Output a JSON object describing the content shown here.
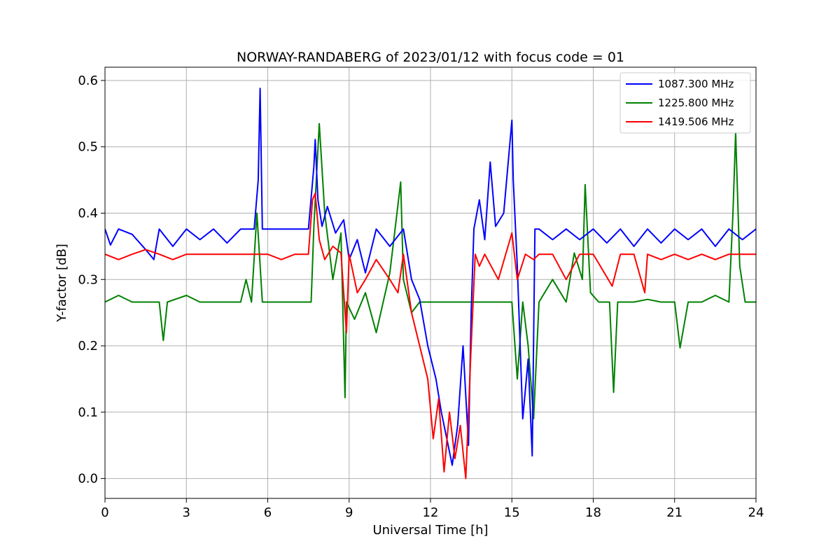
{
  "chart_data": {
    "type": "line",
    "title": "NORWAY-RANDABERG of 2023/01/12 with focus code = 01",
    "xlabel": "Universal Time [h]",
    "ylabel": "Y-factor [dB]",
    "xlim": [
      0,
      24
    ],
    "ylim": [
      -0.03,
      0.62
    ],
    "xticks": [
      0,
      3,
      6,
      9,
      12,
      15,
      18,
      21,
      24
    ],
    "yticks": [
      0.0,
      0.1,
      0.2,
      0.3,
      0.4,
      0.5,
      0.6
    ],
    "ytick_labels": [
      "0.0",
      "0.1",
      "0.2",
      "0.3",
      "0.4",
      "0.5",
      "0.6"
    ],
    "grid": true,
    "legend_position": "top-right",
    "series": [
      {
        "name": "1087.300 MHz",
        "color": "#0000ff",
        "x": [
          0,
          0.2,
          0.5,
          1.0,
          1.5,
          1.8,
          2.0,
          2.5,
          3.0,
          3.5,
          4.0,
          4.5,
          5.0,
          5.5,
          5.65,
          5.72,
          5.8,
          6.5,
          7.5,
          7.7,
          7.75,
          7.85,
          8.0,
          8.2,
          8.5,
          8.8,
          9.0,
          9.3,
          9.6,
          10.0,
          10.5,
          11.0,
          11.3,
          11.6,
          11.9,
          12.2,
          12.4,
          12.6,
          12.8,
          13.0,
          13.2,
          13.4,
          13.5,
          13.6,
          13.8,
          14.0,
          14.2,
          14.4,
          14.7,
          15.0,
          15.05,
          15.2,
          15.4,
          15.6,
          15.75,
          15.85,
          16.0,
          16.5,
          17.0,
          17.5,
          18.0,
          18.5,
          19.0,
          19.5,
          20.0,
          20.5,
          21.0,
          21.5,
          22.0,
          22.5,
          23.0,
          23.5,
          24.0
        ],
        "values": [
          0.376,
          0.352,
          0.376,
          0.368,
          0.345,
          0.33,
          0.376,
          0.35,
          0.376,
          0.36,
          0.376,
          0.355,
          0.376,
          0.376,
          0.45,
          0.588,
          0.376,
          0.376,
          0.376,
          0.47,
          0.511,
          0.42,
          0.38,
          0.41,
          0.37,
          0.39,
          0.33,
          0.36,
          0.31,
          0.376,
          0.35,
          0.376,
          0.3,
          0.27,
          0.2,
          0.15,
          0.1,
          0.06,
          0.02,
          0.08,
          0.2,
          0.05,
          0.25,
          0.376,
          0.42,
          0.36,
          0.477,
          0.38,
          0.4,
          0.54,
          0.45,
          0.32,
          0.09,
          0.18,
          0.034,
          0.376,
          0.376,
          0.36,
          0.376,
          0.36,
          0.376,
          0.355,
          0.376,
          0.35,
          0.376,
          0.355,
          0.376,
          0.36,
          0.376,
          0.35,
          0.376,
          0.36,
          0.376
        ]
      },
      {
        "name": "1225.800 MHz",
        "color": "#008000",
        "x": [
          0,
          0.5,
          1.0,
          1.5,
          2.0,
          2.15,
          2.3,
          3.0,
          3.5,
          4.0,
          5.0,
          5.2,
          5.4,
          5.6,
          5.8,
          6.5,
          7.0,
          7.6,
          7.7,
          7.9,
          8.1,
          8.4,
          8.7,
          8.85,
          8.9,
          9.2,
          9.6,
          10.0,
          10.5,
          10.9,
          11.0,
          11.3,
          11.6,
          12.0,
          12.4,
          12.8,
          13.2,
          13.5,
          13.8,
          14.2,
          14.6,
          15.0,
          15.2,
          15.4,
          15.6,
          15.8,
          16.0,
          16.5,
          17.0,
          17.3,
          17.6,
          17.7,
          17.9,
          18.2,
          18.6,
          18.75,
          18.9,
          19.5,
          20.0,
          20.5,
          21.0,
          21.2,
          21.5,
          22.0,
          22.5,
          23.0,
          23.15,
          23.25,
          23.4,
          23.6,
          24.0
        ],
        "values": [
          0.266,
          0.276,
          0.266,
          0.266,
          0.266,
          0.208,
          0.266,
          0.276,
          0.266,
          0.266,
          0.266,
          0.3,
          0.266,
          0.4,
          0.266,
          0.266,
          0.266,
          0.266,
          0.38,
          0.535,
          0.4,
          0.3,
          0.37,
          0.122,
          0.266,
          0.24,
          0.28,
          0.22,
          0.31,
          0.447,
          0.3,
          0.25,
          0.266,
          0.266,
          0.266,
          0.266,
          0.266,
          0.266,
          0.266,
          0.266,
          0.266,
          0.266,
          0.15,
          0.266,
          0.2,
          0.09,
          0.266,
          0.3,
          0.266,
          0.34,
          0.3,
          0.443,
          0.28,
          0.266,
          0.266,
          0.13,
          0.266,
          0.266,
          0.27,
          0.266,
          0.266,
          0.197,
          0.266,
          0.266,
          0.276,
          0.266,
          0.4,
          0.522,
          0.32,
          0.266,
          0.266
        ]
      },
      {
        "name": "1419.506 MHz",
        "color": "#ff0000",
        "x": [
          0,
          0.5,
          1.0,
          1.5,
          2.0,
          2.5,
          3.0,
          3.5,
          4.0,
          4.5,
          5.0,
          5.5,
          6.0,
          6.5,
          7.0,
          7.5,
          7.65,
          7.75,
          7.9,
          8.1,
          8.4,
          8.7,
          8.9,
          9.0,
          9.3,
          9.6,
          10.0,
          10.5,
          10.8,
          11.0,
          11.3,
          11.6,
          11.9,
          12.1,
          12.3,
          12.5,
          12.7,
          12.9,
          13.1,
          13.3,
          13.5,
          13.65,
          13.8,
          14.0,
          14.5,
          15.0,
          15.2,
          15.5,
          15.8,
          16.0,
          16.5,
          17.0,
          17.5,
          18.0,
          18.7,
          19.0,
          19.5,
          19.9,
          20.0,
          20.5,
          21.0,
          21.5,
          22.0,
          22.5,
          23.0,
          23.5,
          24.0
        ],
        "values": [
          0.338,
          0.33,
          0.338,
          0.345,
          0.338,
          0.33,
          0.338,
          0.338,
          0.338,
          0.338,
          0.338,
          0.338,
          0.338,
          0.33,
          0.338,
          0.338,
          0.42,
          0.43,
          0.36,
          0.33,
          0.35,
          0.34,
          0.22,
          0.338,
          0.28,
          0.3,
          0.33,
          0.3,
          0.28,
          0.338,
          0.25,
          0.2,
          0.15,
          0.06,
          0.12,
          0.01,
          0.1,
          0.03,
          0.08,
          0.0,
          0.2,
          0.338,
          0.32,
          0.338,
          0.3,
          0.37,
          0.3,
          0.338,
          0.33,
          0.338,
          0.338,
          0.3,
          0.338,
          0.338,
          0.29,
          0.338,
          0.338,
          0.28,
          0.338,
          0.33,
          0.338,
          0.33,
          0.338,
          0.33,
          0.338,
          0.338,
          0.338
        ]
      }
    ]
  }
}
